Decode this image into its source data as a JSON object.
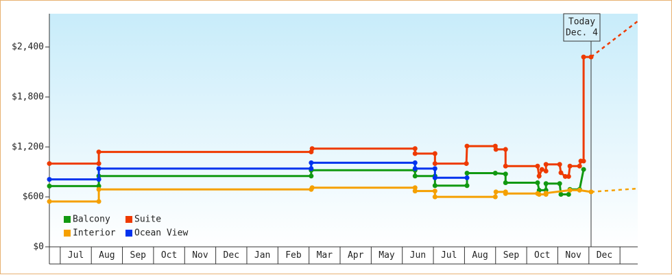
{
  "chart_data": {
    "type": "step-line",
    "xlim": [
      -0.35,
      18.57
    ],
    "xticks": [
      {
        "value": 0,
        "label": "Jul"
      },
      {
        "value": 1,
        "label": "Aug"
      },
      {
        "value": 2,
        "label": "Sep"
      },
      {
        "value": 3,
        "label": "Oct"
      },
      {
        "value": 4,
        "label": "Nov"
      },
      {
        "value": 5,
        "label": "Dec"
      },
      {
        "value": 6,
        "label": "Jan"
      },
      {
        "value": 7,
        "label": "Feb"
      },
      {
        "value": 8,
        "label": "Mar"
      },
      {
        "value": 9,
        "label": "Apr"
      },
      {
        "value": 10,
        "label": "May"
      },
      {
        "value": 11,
        "label": "Jun"
      },
      {
        "value": 12,
        "label": "Jul"
      },
      {
        "value": 13,
        "label": "Aug"
      },
      {
        "value": 14,
        "label": "Sep"
      },
      {
        "value": 15,
        "label": "Oct"
      },
      {
        "value": 16,
        "label": "Nov"
      },
      {
        "value": 17,
        "label": "Dec"
      }
    ],
    "ylim": [
      0,
      2800
    ],
    "yticks": [
      {
        "value": 0,
        "label": "$0"
      },
      {
        "value": 600,
        "label": "$600"
      },
      {
        "value": 1200,
        "label": "$1,200"
      },
      {
        "value": 1800,
        "label": "$1,800"
      },
      {
        "value": 2400,
        "label": "$2,400"
      }
    ],
    "today": {
      "x": 17.07,
      "lines": [
        "Today",
        "Dec. 4"
      ]
    },
    "series": [
      {
        "name": "Balcony",
        "color": "#119911",
        "x": [
          -0.35,
          1.24,
          1.24,
          8.07,
          8.07,
          11.41,
          11.41,
          12.05,
          12.05,
          13.08,
          13.08,
          13.99,
          14.32,
          14.32,
          15.35,
          15.4,
          15.62,
          15.62,
          16.06,
          16.1,
          16.35,
          16.39,
          16.7,
          16.83
        ],
        "values": [
          730,
          730,
          850,
          850,
          920,
          920,
          850,
          850,
          735,
          735,
          885,
          885,
          875,
          770,
          770,
          680,
          680,
          760,
          760,
          630,
          630,
          690,
          690,
          930
        ]
      },
      {
        "name": "Suite",
        "color": "#ee3a00",
        "x": [
          -0.35,
          1.24,
          1.24,
          8.07,
          8.1,
          11.41,
          11.41,
          12.05,
          12.05,
          13.06,
          13.08,
          13.99,
          14.01,
          14.32,
          14.32,
          15.35,
          15.4,
          15.49,
          15.62,
          15.62,
          16.06,
          16.1,
          16.24,
          16.35,
          16.39,
          16.7,
          16.74,
          16.83,
          16.83,
          17.07
        ],
        "values": [
          1000,
          1000,
          1140,
          1140,
          1180,
          1180,
          1120,
          1120,
          1000,
          1000,
          1210,
          1210,
          1170,
          1170,
          970,
          970,
          850,
          930,
          910,
          990,
          990,
          890,
          845,
          845,
          970,
          970,
          1030,
          1030,
          2280,
          2280
        ],
        "forecast": {
          "x": [
            17.07,
            18.57
          ],
          "values": [
            2280,
            2710
          ]
        }
      },
      {
        "name": "Interior",
        "color": "#f5a000",
        "x": [
          -0.35,
          1.24,
          1.24,
          8.07,
          8.1,
          11.41,
          11.41,
          12.05,
          12.05,
          13.99,
          14.01,
          14.32,
          14.32,
          15.35,
          15.4,
          15.62,
          15.62,
          16.39,
          16.7,
          17.07
        ],
        "values": [
          545,
          545,
          690,
          690,
          710,
          710,
          670,
          670,
          600,
          600,
          660,
          660,
          640,
          640,
          630,
          630,
          645,
          680,
          680,
          660
        ],
        "forecast": {
          "x": [
            17.07,
            18.57
          ],
          "values": [
            660,
            700
          ]
        }
      },
      {
        "name": "Ocean View",
        "color": "#0033ee",
        "x": [
          -0.35,
          1.24,
          1.24,
          8.07,
          8.07,
          11.41,
          11.41,
          12.05,
          12.05,
          13.08
        ],
        "values": [
          810,
          810,
          940,
          940,
          1010,
          1010,
          940,
          940,
          830,
          830
        ]
      }
    ]
  }
}
